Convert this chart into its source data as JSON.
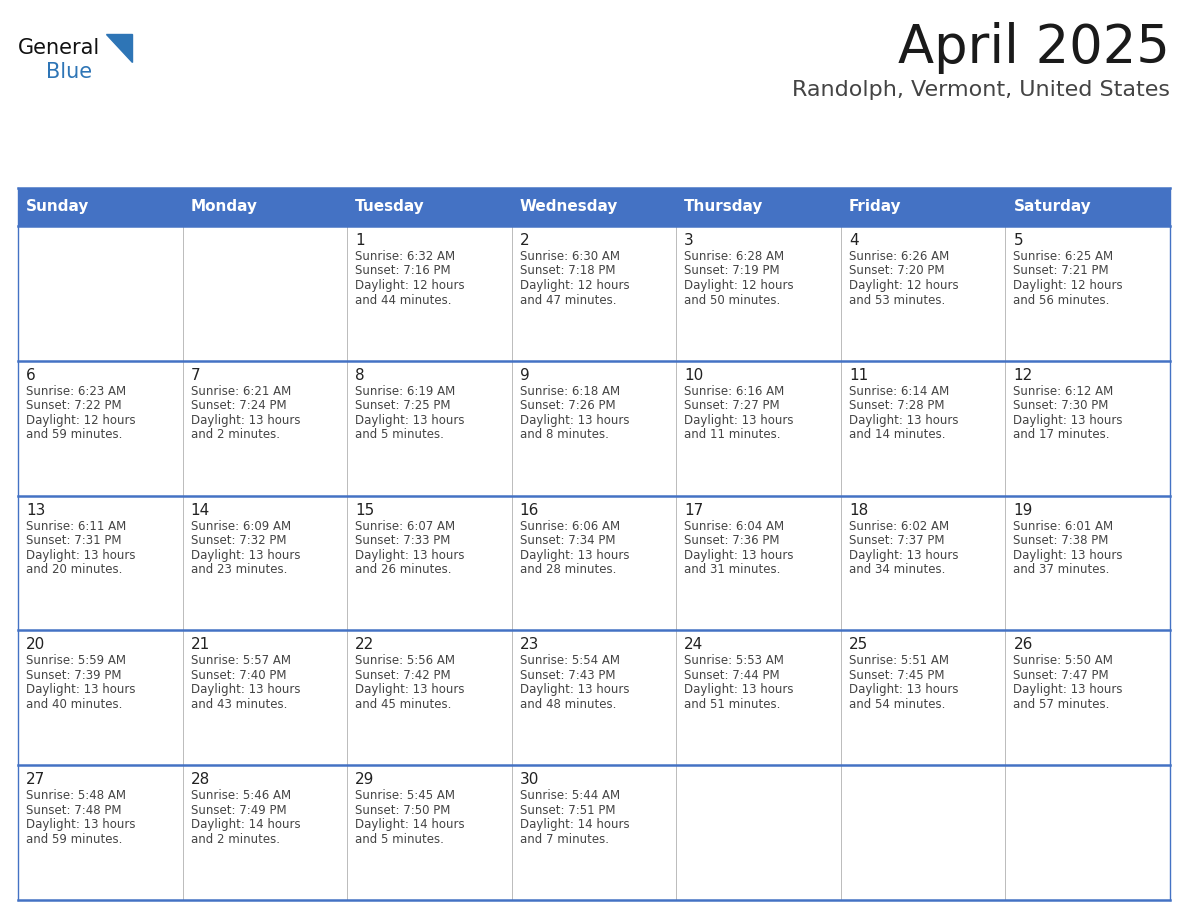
{
  "title": "April 2025",
  "subtitle": "Randolph, Vermont, United States",
  "header_bg": "#4472C4",
  "header_text": "#FFFFFF",
  "cell_bg": "#FFFFFF",
  "border_color": "#4472C4",
  "grid_color": "#AAAAAA",
  "day_names": [
    "Sunday",
    "Monday",
    "Tuesday",
    "Wednesday",
    "Thursday",
    "Friday",
    "Saturday"
  ],
  "title_color": "#1a1a1a",
  "subtitle_color": "#444444",
  "cell_text_color": "#444444",
  "day_num_color": "#222222",
  "calendar": [
    [
      null,
      null,
      {
        "day": "1",
        "sunrise": "6:32 AM",
        "sunset": "7:16 PM",
        "daylight1": "12 hours",
        "daylight2": "and 44 minutes."
      },
      {
        "day": "2",
        "sunrise": "6:30 AM",
        "sunset": "7:18 PM",
        "daylight1": "12 hours",
        "daylight2": "and 47 minutes."
      },
      {
        "day": "3",
        "sunrise": "6:28 AM",
        "sunset": "7:19 PM",
        "daylight1": "12 hours",
        "daylight2": "and 50 minutes."
      },
      {
        "day": "4",
        "sunrise": "6:26 AM",
        "sunset": "7:20 PM",
        "daylight1": "12 hours",
        "daylight2": "and 53 minutes."
      },
      {
        "day": "5",
        "sunrise": "6:25 AM",
        "sunset": "7:21 PM",
        "daylight1": "12 hours",
        "daylight2": "and 56 minutes."
      }
    ],
    [
      {
        "day": "6",
        "sunrise": "6:23 AM",
        "sunset": "7:22 PM",
        "daylight1": "12 hours",
        "daylight2": "and 59 minutes."
      },
      {
        "day": "7",
        "sunrise": "6:21 AM",
        "sunset": "7:24 PM",
        "daylight1": "13 hours",
        "daylight2": "and 2 minutes."
      },
      {
        "day": "8",
        "sunrise": "6:19 AM",
        "sunset": "7:25 PM",
        "daylight1": "13 hours",
        "daylight2": "and 5 minutes."
      },
      {
        "day": "9",
        "sunrise": "6:18 AM",
        "sunset": "7:26 PM",
        "daylight1": "13 hours",
        "daylight2": "and 8 minutes."
      },
      {
        "day": "10",
        "sunrise": "6:16 AM",
        "sunset": "7:27 PM",
        "daylight1": "13 hours",
        "daylight2": "and 11 minutes."
      },
      {
        "day": "11",
        "sunrise": "6:14 AM",
        "sunset": "7:28 PM",
        "daylight1": "13 hours",
        "daylight2": "and 14 minutes."
      },
      {
        "day": "12",
        "sunrise": "6:12 AM",
        "sunset": "7:30 PM",
        "daylight1": "13 hours",
        "daylight2": "and 17 minutes."
      }
    ],
    [
      {
        "day": "13",
        "sunrise": "6:11 AM",
        "sunset": "7:31 PM",
        "daylight1": "13 hours",
        "daylight2": "and 20 minutes."
      },
      {
        "day": "14",
        "sunrise": "6:09 AM",
        "sunset": "7:32 PM",
        "daylight1": "13 hours",
        "daylight2": "and 23 minutes."
      },
      {
        "day": "15",
        "sunrise": "6:07 AM",
        "sunset": "7:33 PM",
        "daylight1": "13 hours",
        "daylight2": "and 26 minutes."
      },
      {
        "day": "16",
        "sunrise": "6:06 AM",
        "sunset": "7:34 PM",
        "daylight1": "13 hours",
        "daylight2": "and 28 minutes."
      },
      {
        "day": "17",
        "sunrise": "6:04 AM",
        "sunset": "7:36 PM",
        "daylight1": "13 hours",
        "daylight2": "and 31 minutes."
      },
      {
        "day": "18",
        "sunrise": "6:02 AM",
        "sunset": "7:37 PM",
        "daylight1": "13 hours",
        "daylight2": "and 34 minutes."
      },
      {
        "day": "19",
        "sunrise": "6:01 AM",
        "sunset": "7:38 PM",
        "daylight1": "13 hours",
        "daylight2": "and 37 minutes."
      }
    ],
    [
      {
        "day": "20",
        "sunrise": "5:59 AM",
        "sunset": "7:39 PM",
        "daylight1": "13 hours",
        "daylight2": "and 40 minutes."
      },
      {
        "day": "21",
        "sunrise": "5:57 AM",
        "sunset": "7:40 PM",
        "daylight1": "13 hours",
        "daylight2": "and 43 minutes."
      },
      {
        "day": "22",
        "sunrise": "5:56 AM",
        "sunset": "7:42 PM",
        "daylight1": "13 hours",
        "daylight2": "and 45 minutes."
      },
      {
        "day": "23",
        "sunrise": "5:54 AM",
        "sunset": "7:43 PM",
        "daylight1": "13 hours",
        "daylight2": "and 48 minutes."
      },
      {
        "day": "24",
        "sunrise": "5:53 AM",
        "sunset": "7:44 PM",
        "daylight1": "13 hours",
        "daylight2": "and 51 minutes."
      },
      {
        "day": "25",
        "sunrise": "5:51 AM",
        "sunset": "7:45 PM",
        "daylight1": "13 hours",
        "daylight2": "and 54 minutes."
      },
      {
        "day": "26",
        "sunrise": "5:50 AM",
        "sunset": "7:47 PM",
        "daylight1": "13 hours",
        "daylight2": "and 57 minutes."
      }
    ],
    [
      {
        "day": "27",
        "sunrise": "5:48 AM",
        "sunset": "7:48 PM",
        "daylight1": "13 hours",
        "daylight2": "and 59 minutes."
      },
      {
        "day": "28",
        "sunrise": "5:46 AM",
        "sunset": "7:49 PM",
        "daylight1": "14 hours",
        "daylight2": "and 2 minutes."
      },
      {
        "day": "29",
        "sunrise": "5:45 AM",
        "sunset": "7:50 PM",
        "daylight1": "14 hours",
        "daylight2": "and 5 minutes."
      },
      {
        "day": "30",
        "sunrise": "5:44 AM",
        "sunset": "7:51 PM",
        "daylight1": "14 hours",
        "daylight2": "and 7 minutes."
      },
      null,
      null,
      null
    ]
  ]
}
